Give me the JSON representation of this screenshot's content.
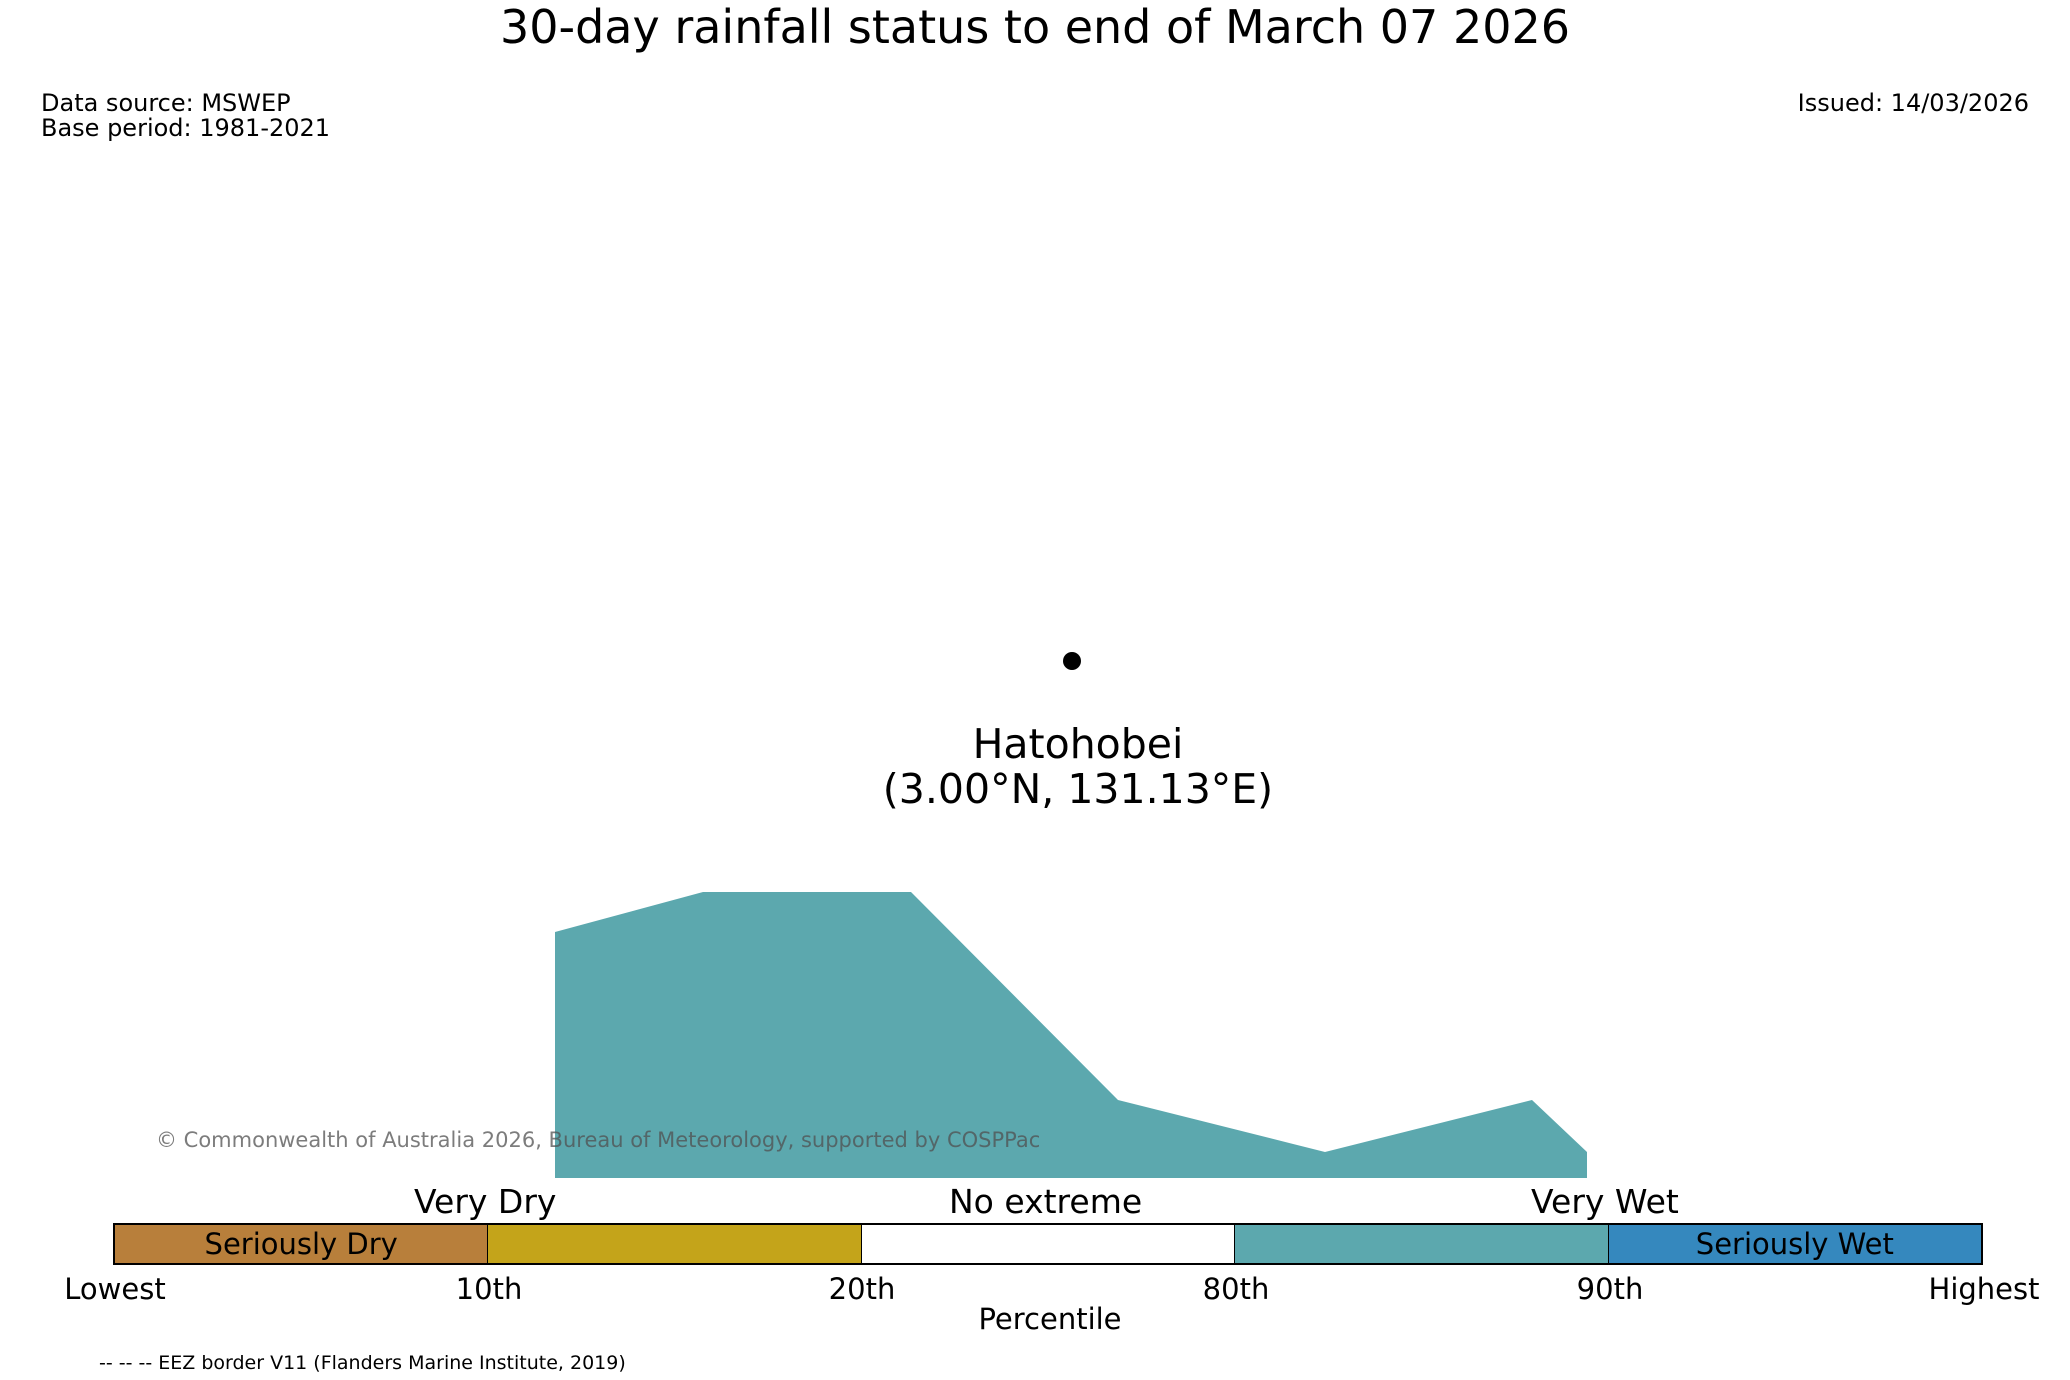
{
  "title": "30-day rainfall status to end of March 07 2026",
  "meta": {
    "data_source": "Data source: MSWEP",
    "base_period": "Base period: 1981-2021",
    "issued": "Issued: 14/03/2026"
  },
  "station": {
    "name": "Hatohobei",
    "coords": "(3.00°N, 131.13°E)"
  },
  "map_fill_color": "#5ca8ae",
  "copyright": "© Commonwealth of Australia 2026, Bureau of Meteorology, supported by COSPPac",
  "legend": {
    "category_labels": [
      "Very Dry",
      "No extreme",
      "Very Wet"
    ],
    "segments": [
      {
        "label": "Seriously Dry",
        "color": "#b87f3b"
      },
      {
        "label": "",
        "color": "#c4a41a"
      },
      {
        "label": "",
        "color": "#ffffff"
      },
      {
        "label": "",
        "color": "#5ca8ae"
      },
      {
        "label": "Seriously Wet",
        "color": "#3588be"
      }
    ],
    "ticks": [
      "Lowest",
      "10th",
      "20th",
      "80th",
      "90th",
      "Highest"
    ],
    "axis_label": "Percentile"
  },
  "footnote": "-- -- -- EEZ border V11 (Flanders Marine Institute, 2019)"
}
